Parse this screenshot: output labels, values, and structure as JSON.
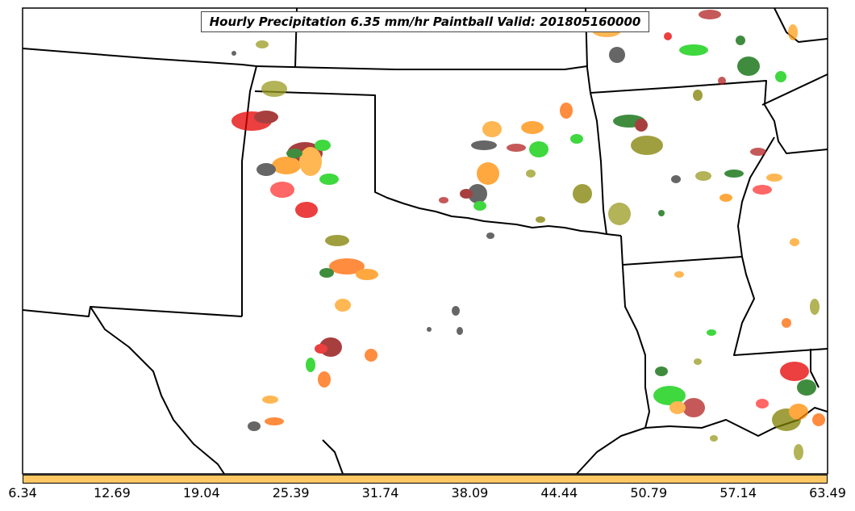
{
  "map": {
    "title": "Hourly Precipitation 6.35 mm/hr Paintball Valid: 201805160000",
    "legend": {
      "colorbar_color": "#ffc864",
      "ticks": [
        "6.34",
        "12.69",
        "19.04",
        "25.39",
        "31.74",
        "38.09",
        "44.44",
        "50.79",
        "57.14",
        "63.49"
      ]
    },
    "member_colors": [
      "#00cc00",
      "#006600",
      "#ff8c00",
      "#ff9f1a",
      "#e60000",
      "#ff3333",
      "#8b0000",
      "#333333",
      "#808000",
      "#9a9a20",
      "#b22222",
      "#ff6600"
    ],
    "state_line_color": "#000000"
  }
}
